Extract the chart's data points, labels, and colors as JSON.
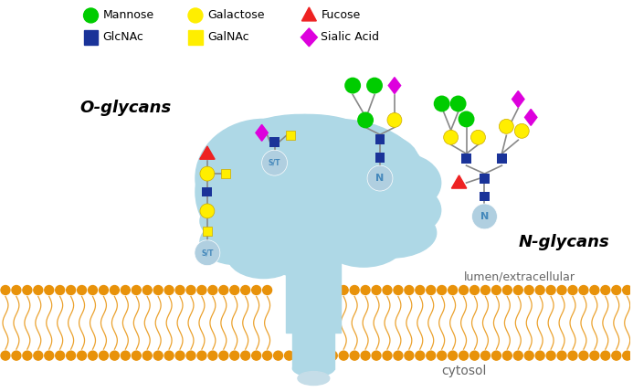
{
  "background_color": "#ffffff",
  "legend_items": [
    {
      "label": "Mannose",
      "color": "#00cc00",
      "shape": "circle"
    },
    {
      "label": "Galactose",
      "color": "#ffee00",
      "shape": "circle"
    },
    {
      "label": "Fucose",
      "color": "#ee2222",
      "shape": "triangle"
    },
    {
      "label": "GlcNAc",
      "color": "#1a3399",
      "shape": "square"
    },
    {
      "label": "GalNAc",
      "color": "#ffee00",
      "shape": "square"
    },
    {
      "label": "Sialic Acid",
      "color": "#dd00dd",
      "shape": "diamond"
    }
  ],
  "protein_color": "#aed8e6",
  "membrane_orange": "#e8920a",
  "st_circle_color": "#b0cfe0",
  "n_circle_color": "#b0cfe0",
  "o_glycan_label": "O-glycans",
  "n_glycan_label": "N-glycans",
  "lumen_label": "lumen/extracellular",
  "cytosol_label": "cytosol"
}
